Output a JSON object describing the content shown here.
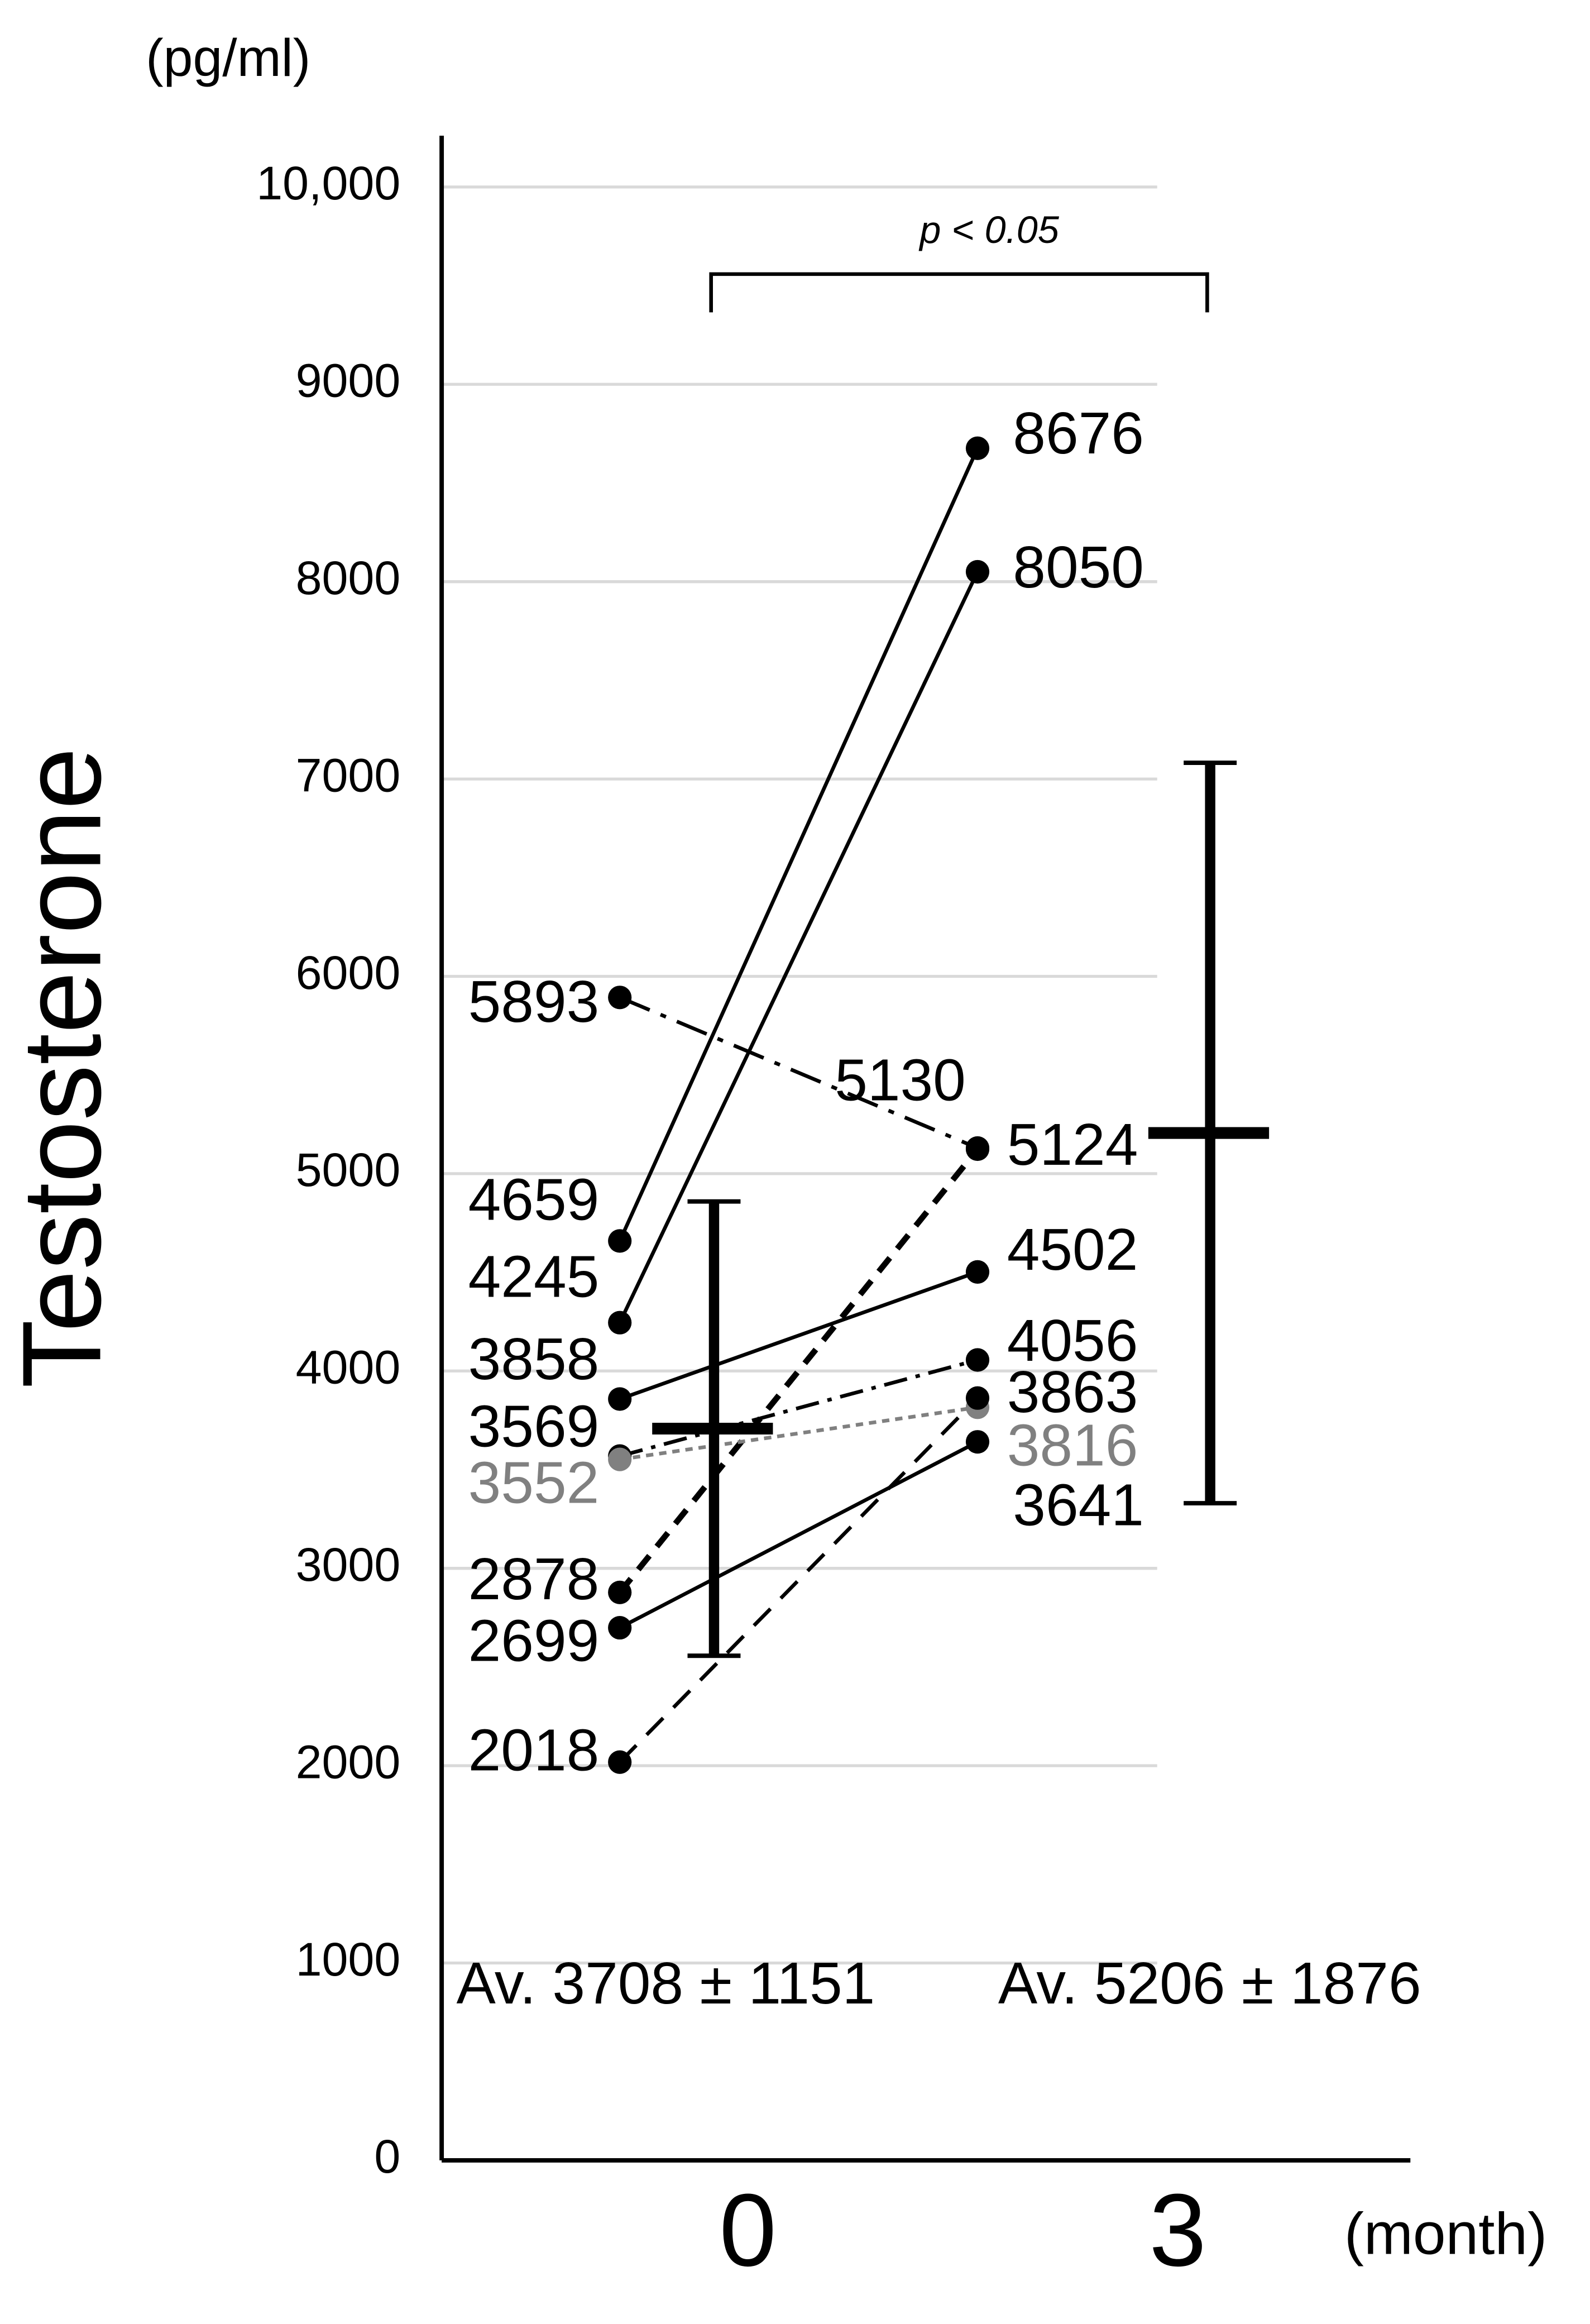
{
  "chart_data": {
    "type": "paired-line",
    "y_unit": "(pg/ml)",
    "y_label": "Testosterone",
    "x_unit": "(month)",
    "categories": [
      "0",
      "3"
    ],
    "ylim": [
      0,
      10260
    ],
    "yticks": [
      0,
      1000,
      2000,
      3000,
      4000,
      5000,
      6000,
      7000,
      8000,
      9000,
      {
        "value": 10000,
        "label": "10,000"
      }
    ],
    "grid": true,
    "series": [
      {
        "values": [
          4659,
          8676
        ],
        "color": "#000000",
        "line_style": "solid"
      },
      {
        "values": [
          4245,
          8050
        ],
        "color": "#000000",
        "line_style": "solid"
      },
      {
        "values": [
          5893,
          5130
        ],
        "color": "#000000",
        "line_style": "long-dash-dot"
      },
      {
        "values": [
          2878,
          5124
        ],
        "color": "#000000",
        "line_style": "bold-dashed"
      },
      {
        "values": [
          3858,
          4502
        ],
        "color": "#000000",
        "line_style": "solid"
      },
      {
        "values": [
          3569,
          4056
        ],
        "color": "#000000",
        "line_style": "dash-dot"
      },
      {
        "values": [
          3552,
          3816
        ],
        "color": "#808080",
        "line_style": "dotted"
      },
      {
        "values": [
          2699,
          3641
        ],
        "color": "#000000",
        "line_style": "solid"
      },
      {
        "values": [
          2018,
          3863
        ],
        "color": "#000000",
        "line_style": "dashed"
      }
    ],
    "mean_sd": {
      "values": [
        3708,
        5206
      ],
      "errors": [
        1151,
        1876
      ],
      "value_labels": [
        "Av. 3708 ± 1151",
        "Av. 5206 ± 1876"
      ],
      "color": "#000000"
    },
    "annotation": "p < 0.05"
  }
}
